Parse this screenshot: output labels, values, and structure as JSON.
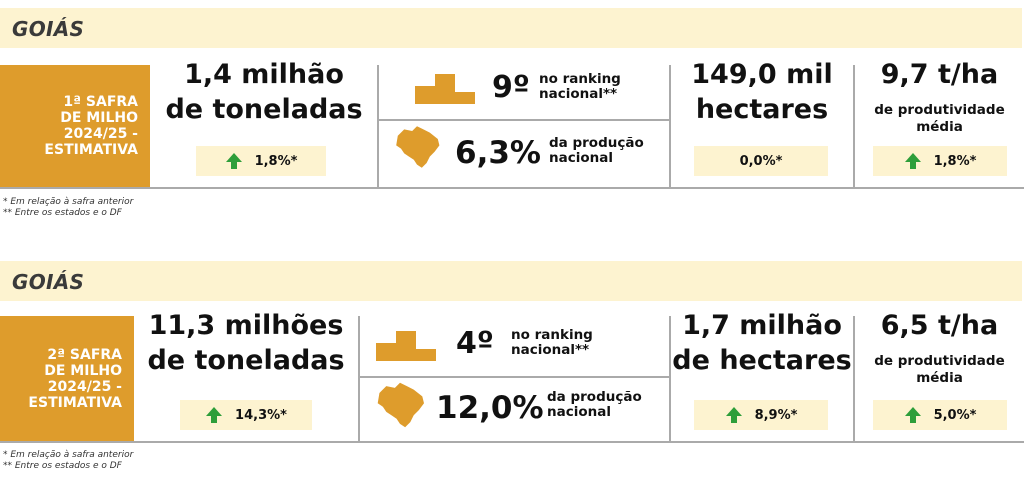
{
  "blocks": [
    {
      "header": "GOIÁS",
      "label_lines": [
        "1ª SAFRA",
        "DE MILHO",
        "2024/25 -",
        "ESTIMATIVA"
      ],
      "production": {
        "line1": "1,4 milhão",
        "line2": "de toneladas",
        "change": "1,8%*"
      },
      "ranking": {
        "position": "9º",
        "text_line1": "no ranking",
        "text_line2": "nacional**"
      },
      "share": {
        "value": "6,3%",
        "text_line1": "da produção",
        "text_line2": "nacional"
      },
      "area": {
        "line1": "149,0 mil",
        "line2": "hectares",
        "change": "0,0%*",
        "arrow": false
      },
      "productivity": {
        "value": "9,7 t/ha",
        "text_line1": "de produtividade",
        "text_line2": "média",
        "change": "1,8%*"
      },
      "footnote1": "* Em relação à safra anterior",
      "footnote2": "** Entre os estados e o DF"
    },
    {
      "header": "GOIÁS",
      "label_lines": [
        "2ª SAFRA",
        "DE MILHO",
        "2024/25 -",
        "ESTIMATIVA"
      ],
      "production": {
        "line1": "11,3 milhões",
        "line2": "de toneladas",
        "change": "14,3%*"
      },
      "ranking": {
        "position": "4º",
        "text_line1": "no ranking",
        "text_line2": "nacional**"
      },
      "share": {
        "value": "12,0%",
        "text_line1": "da produção",
        "text_line2": "nacional"
      },
      "area": {
        "line1": "1,7 milhão",
        "line2": "de hectares",
        "change": "8,9%*",
        "arrow": true
      },
      "productivity": {
        "value": "6,5 t/ha",
        "text_line1": "de produtividade",
        "text_line2": "média",
        "change": "5,0%*"
      },
      "footnote1": "* Em relação à safra anterior",
      "footnote2": "** Entre os estados e o DF"
    }
  ],
  "colors": {
    "orange": "#de9c2c",
    "cream": "#fdf3d0",
    "arrow_green": "#2e9e3a",
    "rule_gray": "#aaaaaa"
  },
  "icons": [
    "podium-icon",
    "brazil-map-icon",
    "up-arrow-icon"
  ]
}
